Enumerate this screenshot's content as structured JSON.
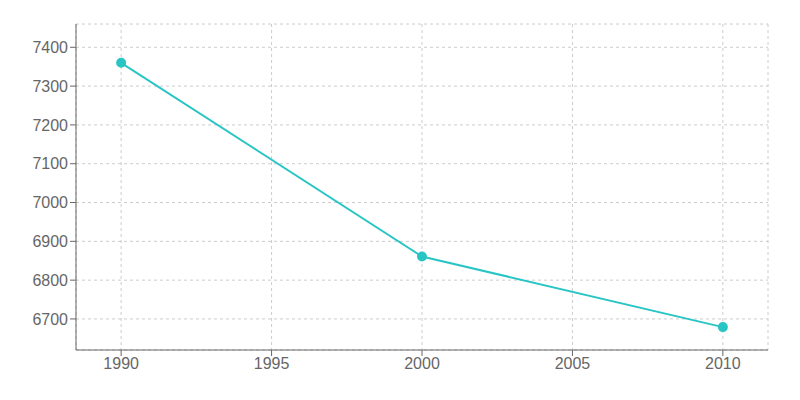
{
  "chart_data": {
    "type": "line",
    "x": [
      1990,
      2000,
      2010
    ],
    "values": [
      7360,
      6861,
      6679
    ],
    "color": "#29C5C5",
    "marker": "circle",
    "xlim": [
      1988.5,
      2011.5
    ],
    "ylim": [
      6620,
      7460
    ],
    "xticks": [
      1990,
      1995,
      2000,
      2005,
      2010
    ],
    "yticks": [
      6700,
      6800,
      6900,
      7000,
      7100,
      7200,
      7300,
      7400
    ],
    "grid": true
  }
}
